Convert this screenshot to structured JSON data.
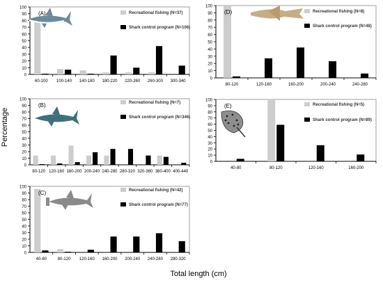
{
  "figure": {
    "ylabel": "Percentage",
    "xlabel": "Total length (cm)"
  },
  "colors": {
    "recreational": "#cdcdcd",
    "shark_control": "#000000",
    "axis": "#000000"
  },
  "chart_data": [
    {
      "type": "bar",
      "panel": "(A)",
      "animal_icon": "shark-silhouette-icon",
      "categories": [
        "60-100",
        "100-140",
        "140-180",
        "180-220",
        "220-260",
        "260-300",
        "300-340"
      ],
      "series": [
        {
          "name": "Recreational fishing (N=37)",
          "values": [
            79,
            8,
            6,
            3,
            3,
            3,
            0
          ]
        },
        {
          "name": "Shark control program (N=106)",
          "values": [
            1,
            7,
            1,
            28,
            10,
            42,
            13
          ]
        }
      ],
      "ylim": [
        0,
        100
      ],
      "yticks": [
        0,
        10,
        20,
        30,
        40,
        50,
        60,
        70,
        80,
        90,
        100
      ],
      "legend_position": "top-right"
    },
    {
      "type": "bar",
      "panel": "(B)",
      "animal_icon": "tiger-shark-icon",
      "categories": [
        "80-120",
        "120-160",
        "160-200",
        "200-240",
        "240-280",
        "280-320",
        "320-360",
        "360-400",
        "400-440"
      ],
      "series": [
        {
          "name": "Recreational fishing (N=7)",
          "values": [
            14,
            14,
            29,
            14,
            14,
            0,
            0,
            14,
            0
          ]
        },
        {
          "name": "Shark control program (N=346)",
          "values": [
            1,
            2,
            4,
            19,
            24,
            24,
            14,
            12,
            3
          ]
        }
      ],
      "ylim": [
        0,
        100
      ],
      "yticks": [
        0,
        10,
        20,
        30,
        40,
        50,
        60,
        70,
        80,
        90,
        100
      ],
      "legend_position": "top-right"
    },
    {
      "type": "bar",
      "panel": "(C)",
      "animal_icon": "hammerhead-shark-icon",
      "categories": [
        "40-80",
        "80-120",
        "120-160",
        "160-200",
        "200-240",
        "240-280",
        "280-320"
      ],
      "series": [
        {
          "name": "Recreational fishing (N=42)",
          "values": [
            96,
            5,
            0,
            0,
            0,
            0,
            0
          ]
        },
        {
          "name": "Shark control program (N=77)",
          "values": [
            3,
            1,
            4,
            24,
            24,
            29,
            17
          ]
        }
      ],
      "ylim": [
        0,
        100
      ],
      "yticks": [
        0,
        10,
        20,
        30,
        40,
        50,
        60,
        70,
        80,
        90,
        100
      ],
      "legend_position": "top-right"
    },
    {
      "type": "bar",
      "panel": "(D)",
      "animal_icon": "shovelnose-ray-icon",
      "categories": [
        "80-120",
        "120-160",
        "160-200",
        "200-240",
        "240-280"
      ],
      "series": [
        {
          "name": "Recreational fishing (N=8)",
          "values": [
            100,
            0,
            0,
            0,
            0
          ]
        },
        {
          "name": "Shark control program (N=48)",
          "values": [
            2,
            27,
            42,
            23,
            6
          ]
        }
      ],
      "ylim": [
        0,
        100
      ],
      "yticks": [
        0,
        10,
        20,
        30,
        40,
        50,
        60,
        70,
        80,
        90,
        100
      ],
      "legend_position": "top-right"
    },
    {
      "type": "bar",
      "panel": "(E)",
      "animal_icon": "spotted-ray-icon",
      "categories": [
        "40-80",
        "80-120",
        "120-160",
        "160-200"
      ],
      "series": [
        {
          "name": "Recreational fishing (N=5)",
          "values": [
            0,
            100,
            0,
            0
          ]
        },
        {
          "name": "Shark control program (N=89)",
          "values": [
            4,
            59,
            26,
            11
          ]
        }
      ],
      "ylim": [
        0,
        100
      ],
      "yticks": [
        0,
        10,
        20,
        30,
        40,
        50,
        60,
        70,
        80,
        90,
        100
      ],
      "legend_position": "top-right"
    }
  ]
}
